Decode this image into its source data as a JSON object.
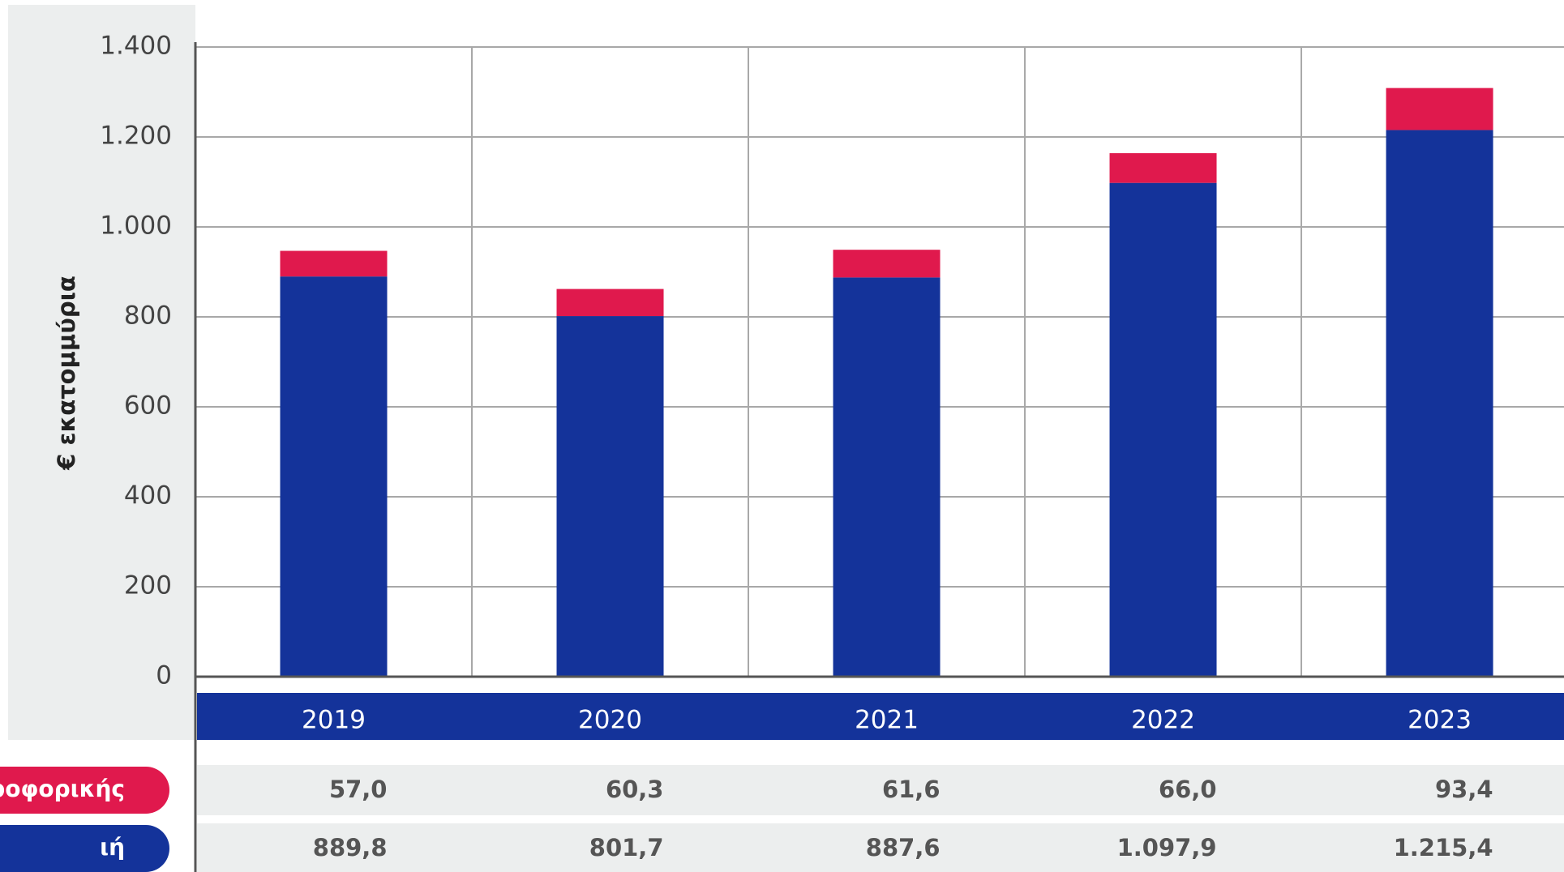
{
  "chart_data": {
    "type": "stacked_bar",
    "y_label": "€ εκατομμύρια",
    "categories": [
      "2019",
      "2020",
      "2021",
      "2022",
      "2023"
    ],
    "series": [
      {
        "name": "ιή",
        "color": "#14339a",
        "values": [
          889.8,
          801.7,
          887.6,
          1097.9,
          1215.4
        ],
        "value_labels": [
          "889,8",
          "801,7",
          "887,6",
          "1.097,9",
          "1.215,4"
        ]
      },
      {
        "name": "ληροφορικής",
        "color": "#e0194d",
        "values": [
          57.0,
          60.3,
          61.6,
          66.0,
          93.4
        ],
        "value_labels": [
          "57,0",
          "60,3",
          "61,6",
          "66,0",
          "93,4"
        ]
      }
    ],
    "ylim": [
      0,
      1400
    ],
    "yticks": [
      0,
      200,
      400,
      600,
      800,
      {
        "value": 1000,
        "label": "1.000"
      },
      {
        "value": 1200,
        "label": "1.200"
      },
      {
        "value": 1400,
        "label": "1.400"
      }
    ],
    "grid": true
  }
}
